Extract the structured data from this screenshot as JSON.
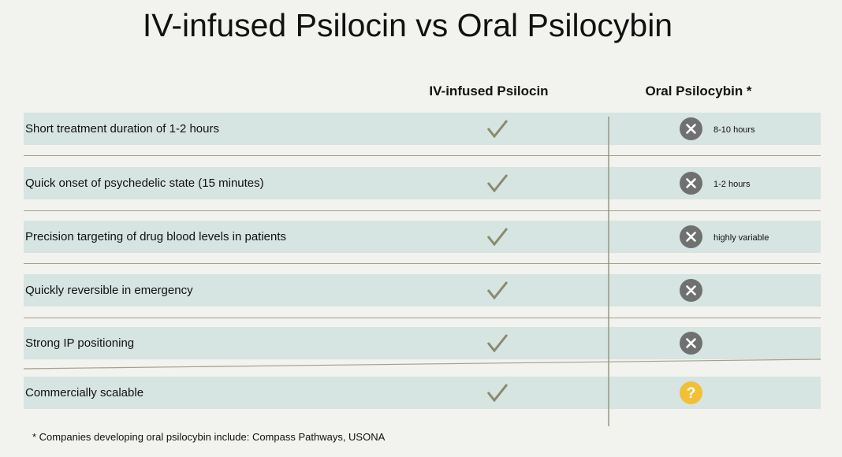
{
  "title": "IV-infused Psilocin vs Oral Psilocybin",
  "columns": {
    "iv": "IV-infused Psilocin",
    "oral": "Oral Psilocybin *"
  },
  "rows": [
    {
      "label": "Short treatment duration of 1-2 hours",
      "iv": "check-icon",
      "oral": "x-circle-icon",
      "oral_note": "8-10 hours"
    },
    {
      "label": "Quick onset of psychedelic state (15 minutes)",
      "iv": "check-icon",
      "oral": "x-circle-icon",
      "oral_note": "1-2 hours"
    },
    {
      "label": "Precision targeting of drug blood levels in patients",
      "iv": "check-icon",
      "oral": "x-circle-icon",
      "oral_note": "highly variable"
    },
    {
      "label": "Quickly reversible in emergency",
      "iv": "check-icon",
      "oral": "x-circle-icon",
      "oral_note": ""
    },
    {
      "label": "Strong IP positioning",
      "iv": "check-icon",
      "oral": "x-circle-icon",
      "oral_note": ""
    },
    {
      "label": "Commercially scalable",
      "iv": "check-icon",
      "oral": "question-circle-icon",
      "oral_note": ""
    }
  ],
  "colors": {
    "row_background": "#d6e4e2",
    "check": "#8a8a6c",
    "x_circle": "#6f7171",
    "question_circle": "#f2c037",
    "divider": "#a3a08a"
  },
  "footnote": "* Companies developing oral psilocybin include: Compass Pathways, USONA"
}
